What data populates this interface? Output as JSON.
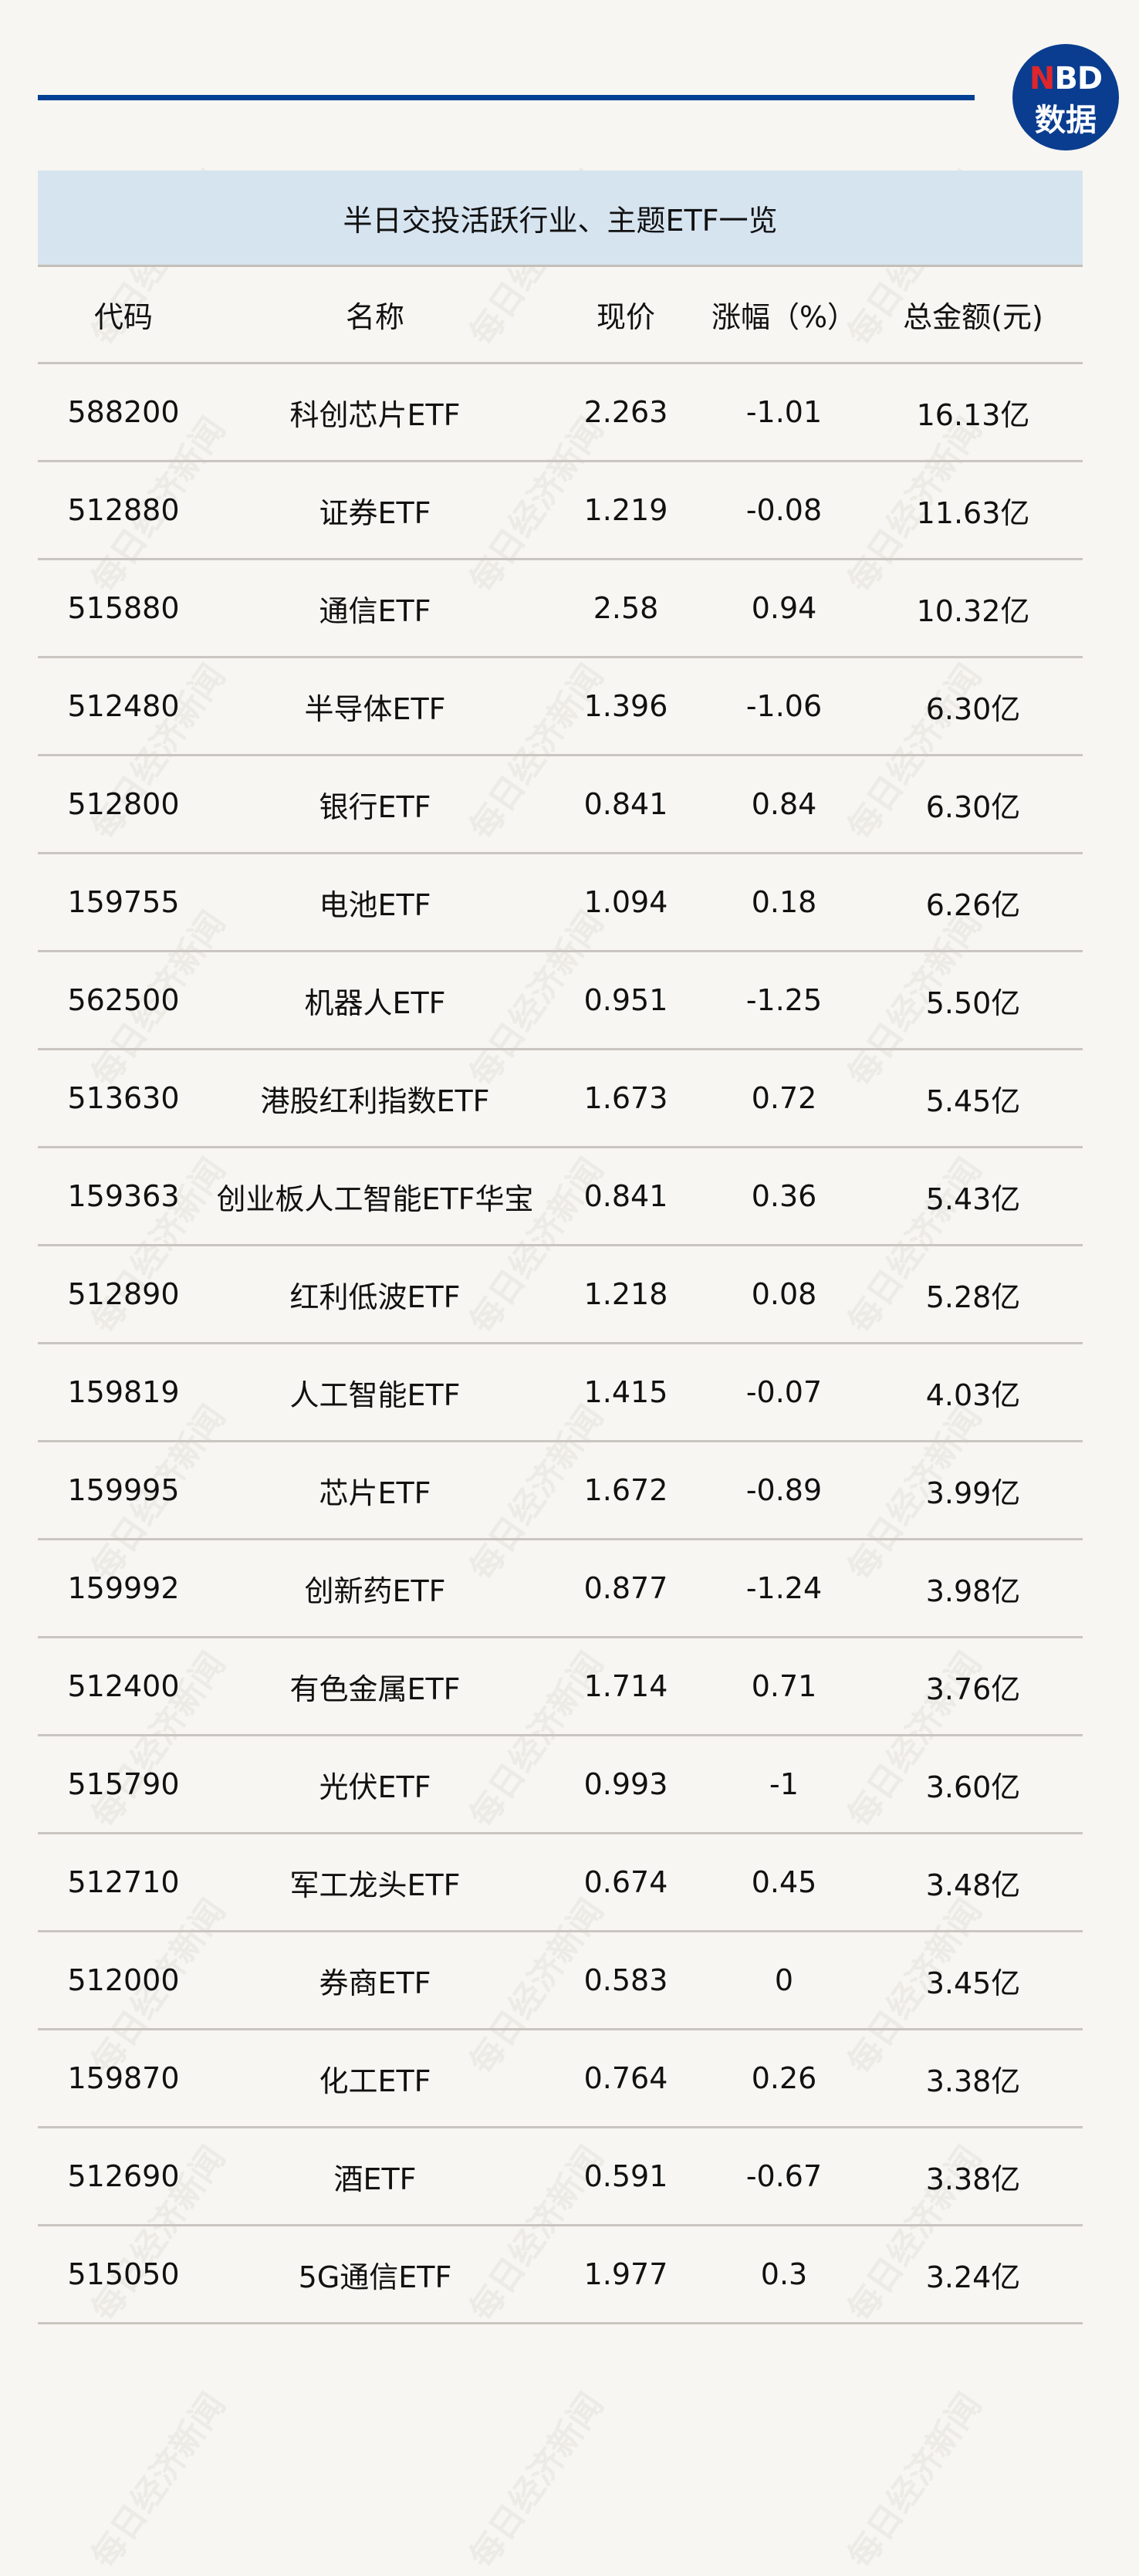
{
  "logo": {
    "n": "N",
    "bd": "BD",
    "line2": "数据"
  },
  "watermark": "每日经济新闻",
  "title": "半日交投活跃行业、主题ETF一览",
  "colors": {
    "accent_line": "#003f93",
    "title_band": "#d6e4f0",
    "logo_bg": "#0a3d8f",
    "logo_red": "#e0262b"
  },
  "headers": [
    "代码",
    "名称",
    "现价",
    "涨幅（%）",
    "总金额(元)"
  ],
  "rows": [
    [
      "588200",
      "科创芯片ETF",
      "2.263",
      "-1.01",
      "16.13亿"
    ],
    [
      "512880",
      "证券ETF",
      "1.219",
      "-0.08",
      "11.63亿"
    ],
    [
      "515880",
      "通信ETF",
      "2.58",
      "0.94",
      "10.32亿"
    ],
    [
      "512480",
      "半导体ETF",
      "1.396",
      "-1.06",
      "6.30亿"
    ],
    [
      "512800",
      "银行ETF",
      "0.841",
      "0.84",
      "6.30亿"
    ],
    [
      "159755",
      "电池ETF",
      "1.094",
      "0.18",
      "6.26亿"
    ],
    [
      "562500",
      "机器人ETF",
      "0.951",
      "-1.25",
      "5.50亿"
    ],
    [
      "513630",
      "港股红利指数ETF",
      "1.673",
      "0.72",
      "5.45亿"
    ],
    [
      "159363",
      "创业板人工智能ETF华宝",
      "0.841",
      "0.36",
      "5.43亿"
    ],
    [
      "512890",
      "红利低波ETF",
      "1.218",
      "0.08",
      "5.28亿"
    ],
    [
      "159819",
      "人工智能ETF",
      "1.415",
      "-0.07",
      "4.03亿"
    ],
    [
      "159995",
      "芯片ETF",
      "1.672",
      "-0.89",
      "3.99亿"
    ],
    [
      "159992",
      "创新药ETF",
      "0.877",
      "-1.24",
      "3.98亿"
    ],
    [
      "512400",
      "有色金属ETF",
      "1.714",
      "0.71",
      "3.76亿"
    ],
    [
      "515790",
      "光伏ETF",
      "0.993",
      "-1",
      "3.60亿"
    ],
    [
      "512710",
      "军工龙头ETF",
      "0.674",
      "0.45",
      "3.48亿"
    ],
    [
      "512000",
      "券商ETF",
      "0.583",
      "0",
      "3.45亿"
    ],
    [
      "159870",
      "化工ETF",
      "0.764",
      "0.26",
      "3.38亿"
    ],
    [
      "512690",
      "酒ETF",
      "0.591",
      "-0.67",
      "3.38亿"
    ],
    [
      "515050",
      "5G通信ETF",
      "1.977",
      "0.3",
      "3.24亿"
    ]
  ]
}
